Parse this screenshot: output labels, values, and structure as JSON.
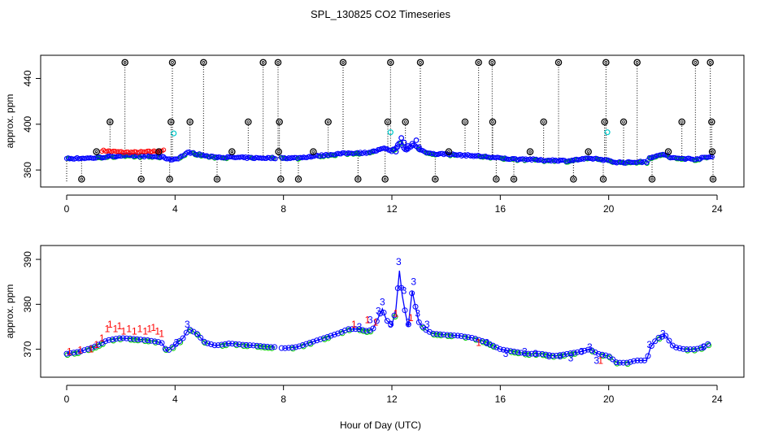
{
  "chart_data": [
    {
      "type": "scatter",
      "title": "SPL_130825  CO2 Timeseries",
      "xlabel": "",
      "ylabel": "approx. ppm",
      "xlim": [
        0,
        24
      ],
      "ylim": [
        348,
        456
      ],
      "xticks": [
        "0",
        "4",
        "8",
        "12",
        "16",
        "20",
        "24"
      ],
      "yticks": [
        "360",
        "400",
        "440"
      ],
      "colors": {
        "black": "#000000",
        "red": "#ff0000",
        "green": "#00cc00",
        "blue": "#0000ff",
        "cyan": "#00cccc"
      },
      "black_spikes": [
        [
          0.55,
          352
        ],
        [
          1.1,
          376
        ],
        [
          1.6,
          402
        ],
        [
          2.15,
          454
        ],
        [
          2.75,
          352
        ],
        [
          3.4,
          376
        ],
        [
          3.8,
          352
        ],
        [
          3.85,
          402
        ],
        [
          3.9,
          454
        ],
        [
          4.55,
          402
        ],
        [
          5.05,
          454
        ],
        [
          5.55,
          352
        ],
        [
          6.1,
          376
        ],
        [
          6.7,
          402
        ],
        [
          7.25,
          454
        ],
        [
          7.8,
          454
        ],
        [
          7.82,
          376
        ],
        [
          7.85,
          402
        ],
        [
          7.9,
          352
        ],
        [
          8.55,
          352
        ],
        [
          9.1,
          376
        ],
        [
          9.65,
          402
        ],
        [
          10.2,
          454
        ],
        [
          10.75,
          352
        ],
        [
          11.75,
          352
        ],
        [
          11.85,
          402
        ],
        [
          11.95,
          454
        ],
        [
          12.5,
          402
        ],
        [
          13.05,
          454
        ],
        [
          13.6,
          352
        ],
        [
          14.1,
          376
        ],
        [
          14.7,
          402
        ],
        [
          15.2,
          454
        ],
        [
          15.7,
          454
        ],
        [
          15.72,
          402
        ],
        [
          15.85,
          352
        ],
        [
          16.5,
          352
        ],
        [
          17.1,
          376
        ],
        [
          17.6,
          402
        ],
        [
          18.15,
          454
        ],
        [
          18.7,
          352
        ],
        [
          19.25,
          376
        ],
        [
          19.8,
          352
        ],
        [
          19.85,
          402
        ],
        [
          19.9,
          454
        ],
        [
          20.55,
          402
        ],
        [
          21.05,
          454
        ],
        [
          21.6,
          352
        ],
        [
          22.2,
          376
        ],
        [
          22.7,
          402
        ],
        [
          23.2,
          454
        ],
        [
          23.75,
          454
        ],
        [
          23.8,
          402
        ],
        [
          23.82,
          376
        ],
        [
          23.85,
          352
        ]
      ],
      "cyan_points": [
        [
          3.95,
          392
        ],
        [
          11.95,
          393
        ],
        [
          19.95,
          393
        ]
      ],
      "red_bump": {
        "x_start": 1.3,
        "x_end": 3.6,
        "value": 377
      },
      "baseline": [
        [
          0,
          370
        ],
        [
          1,
          370.5
        ],
        [
          1.5,
          371.5
        ],
        [
          2,
          372.5
        ],
        [
          3,
          372
        ],
        [
          3.6,
          371
        ],
        [
          3.8,
          369
        ],
        [
          4.1,
          370
        ],
        [
          4.5,
          375.5
        ],
        [
          4.8,
          374
        ],
        [
          5.3,
          371.5
        ],
        [
          6,
          371
        ],
        [
          7,
          370.5
        ],
        [
          7.7,
          370.5
        ],
        [
          8.5,
          370.5
        ],
        [
          9.3,
          372.5
        ],
        [
          10,
          374
        ],
        [
          10.6,
          375
        ],
        [
          11,
          375
        ],
        [
          11.3,
          376
        ],
        [
          11.6,
          378
        ],
        [
          11.8,
          379
        ],
        [
          12,
          376
        ],
        [
          12.3,
          384
        ],
        [
          12.5,
          377
        ],
        [
          12.8,
          382
        ],
        [
          13.1,
          377
        ],
        [
          13.5,
          374
        ],
        [
          14,
          374
        ],
        [
          14.5,
          373
        ],
        [
          15,
          372.5
        ],
        [
          15.5,
          371.5
        ],
        [
          15.9,
          370.5
        ],
        [
          16.5,
          369.5
        ],
        [
          17,
          369.5
        ],
        [
          17.5,
          368.5
        ],
        [
          18,
          368.5
        ],
        [
          18.5,
          368
        ],
        [
          19,
          369.5
        ],
        [
          19.5,
          370
        ],
        [
          19.9,
          368.5
        ],
        [
          20.2,
          367
        ],
        [
          20.6,
          366.5
        ],
        [
          21,
          367
        ],
        [
          21.4,
          367
        ],
        [
          21.5,
          371
        ],
        [
          21.8,
          372
        ],
        [
          22,
          374
        ],
        [
          22.3,
          370.5
        ],
        [
          22.8,
          370
        ],
        [
          23.2,
          369.5
        ],
        [
          23.6,
          371
        ],
        [
          23.8,
          371.5
        ]
      ],
      "gap": [
        7.7,
        7.9
      ]
    },
    {
      "type": "line",
      "title": "",
      "xlabel": "Hour of Day (UTC)",
      "ylabel": "approx. ppm",
      "xlim": [
        0,
        24
      ],
      "ylim": [
        364.5,
        392
      ],
      "xticks": [
        "0",
        "4",
        "8",
        "12",
        "16",
        "20",
        "24"
      ],
      "yticks": [
        "370",
        "380",
        "390"
      ],
      "series": [
        {
          "name": "1",
          "color": "#ff0000",
          "symbol": "1",
          "points": [
            [
              0.1,
              369.5
            ],
            [
              0.5,
              369.8
            ],
            [
              0.9,
              370
            ],
            [
              1.1,
              371
            ],
            [
              1.3,
              372.5
            ],
            [
              1.5,
              374.5
            ],
            [
              1.6,
              375.5
            ],
            [
              1.8,
              374.5
            ],
            [
              1.95,
              375.2
            ],
            [
              2.1,
              374
            ],
            [
              2.3,
              374.5
            ],
            [
              2.5,
              374
            ],
            [
              2.7,
              374.5
            ],
            [
              2.9,
              374
            ],
            [
              3.05,
              374.5
            ],
            [
              3.2,
              374.8
            ],
            [
              3.35,
              374
            ],
            [
              3.5,
              373.5
            ]
          ]
        },
        {
          "name": "3",
          "color": "#0000ff",
          "symbol": "3",
          "points": [
            [
              4.05,
              371.5
            ],
            [
              4.45,
              375.5
            ],
            [
              10.8,
              375
            ],
            [
              11.2,
              376.5
            ],
            [
              11.5,
              378.5
            ],
            [
              11.65,
              380.5
            ],
            [
              11.95,
              375.5
            ],
            [
              12.25,
              389.5
            ],
            [
              12.45,
              383
            ],
            [
              12.6,
              376
            ],
            [
              12.8,
              385
            ],
            [
              12.95,
              378
            ],
            [
              13.3,
              375.5
            ],
            [
              15.5,
              371.5
            ],
            [
              16.2,
              369
            ],
            [
              16.9,
              369.5
            ],
            [
              17.3,
              369
            ],
            [
              17.8,
              368.5
            ],
            [
              18.2,
              368.5
            ],
            [
              18.6,
              368
            ],
            [
              19.0,
              369.5
            ],
            [
              19.3,
              370.5
            ],
            [
              19.55,
              367.5
            ],
            [
              21.5,
              371
            ],
            [
              22.0,
              373.5
            ],
            [
              23.5,
              370.5
            ]
          ]
        },
        {
          "name": "1_extra",
          "color": "#ff0000",
          "symbol": "1",
          "points": [
            [
              10.6,
              375.5
            ],
            [
              11.1,
              376.5
            ],
            [
              11.4,
              376
            ],
            [
              12.15,
              378
            ],
            [
              12.7,
              377
            ],
            [
              15.2,
              371.5
            ],
            [
              19.7,
              367.5
            ]
          ]
        }
      ],
      "smooth_line": [
        [
          0,
          369
        ],
        [
          0.5,
          369.5
        ],
        [
          1,
          370.5
        ],
        [
          1.5,
          372
        ],
        [
          2,
          372.5
        ],
        [
          2.5,
          372.3
        ],
        [
          3,
          372
        ],
        [
          3.5,
          371.5
        ],
        [
          3.7,
          369.5
        ],
        [
          4,
          371
        ],
        [
          4.3,
          372.5
        ],
        [
          4.5,
          374.5
        ],
        [
          4.8,
          373.5
        ],
        [
          5.1,
          371.5
        ],
        [
          5.5,
          370.8
        ],
        [
          6,
          371.3
        ],
        [
          6.5,
          371
        ],
        [
          7,
          370.8
        ],
        [
          7.5,
          370.5
        ],
        [
          7.7,
          370.5
        ],
        [
          8,
          370.2
        ],
        [
          8.5,
          370.5
        ],
        [
          9,
          371.5
        ],
        [
          9.5,
          372.5
        ],
        [
          10,
          373.5
        ],
        [
          10.4,
          374.5
        ],
        [
          10.8,
          374.5
        ],
        [
          11.1,
          374
        ],
        [
          11.3,
          374.5
        ],
        [
          11.5,
          377
        ],
        [
          11.65,
          379
        ],
        [
          11.8,
          376.5
        ],
        [
          12,
          375.3
        ],
        [
          12.15,
          379
        ],
        [
          12.28,
          387.5
        ],
        [
          12.38,
          382
        ],
        [
          12.5,
          378
        ],
        [
          12.6,
          375
        ],
        [
          12.75,
          383
        ],
        [
          12.85,
          380
        ],
        [
          13,
          376
        ],
        [
          13.2,
          374.5
        ],
        [
          13.5,
          373.5
        ],
        [
          14,
          373.2
        ],
        [
          14.5,
          373
        ],
        [
          15,
          372.5
        ],
        [
          15.5,
          371.5
        ],
        [
          16,
          370
        ],
        [
          16.5,
          369.5
        ],
        [
          17,
          369
        ],
        [
          17.5,
          369
        ],
        [
          18,
          368.5
        ],
        [
          18.5,
          369
        ],
        [
          19,
          369.5
        ],
        [
          19.3,
          370
        ],
        [
          19.6,
          369
        ],
        [
          20,
          368.5
        ],
        [
          20.3,
          367
        ],
        [
          20.7,
          367
        ],
        [
          21,
          367.5
        ],
        [
          21.4,
          367.5
        ],
        [
          21.55,
          370.5
        ],
        [
          21.8,
          372.5
        ],
        [
          22.1,
          373
        ],
        [
          22.4,
          370.5
        ],
        [
          22.8,
          370
        ],
        [
          23.2,
          370
        ],
        [
          23.5,
          370.5
        ],
        [
          23.75,
          371.5
        ]
      ],
      "gap": [
        7.7,
        7.9
      ]
    }
  ]
}
